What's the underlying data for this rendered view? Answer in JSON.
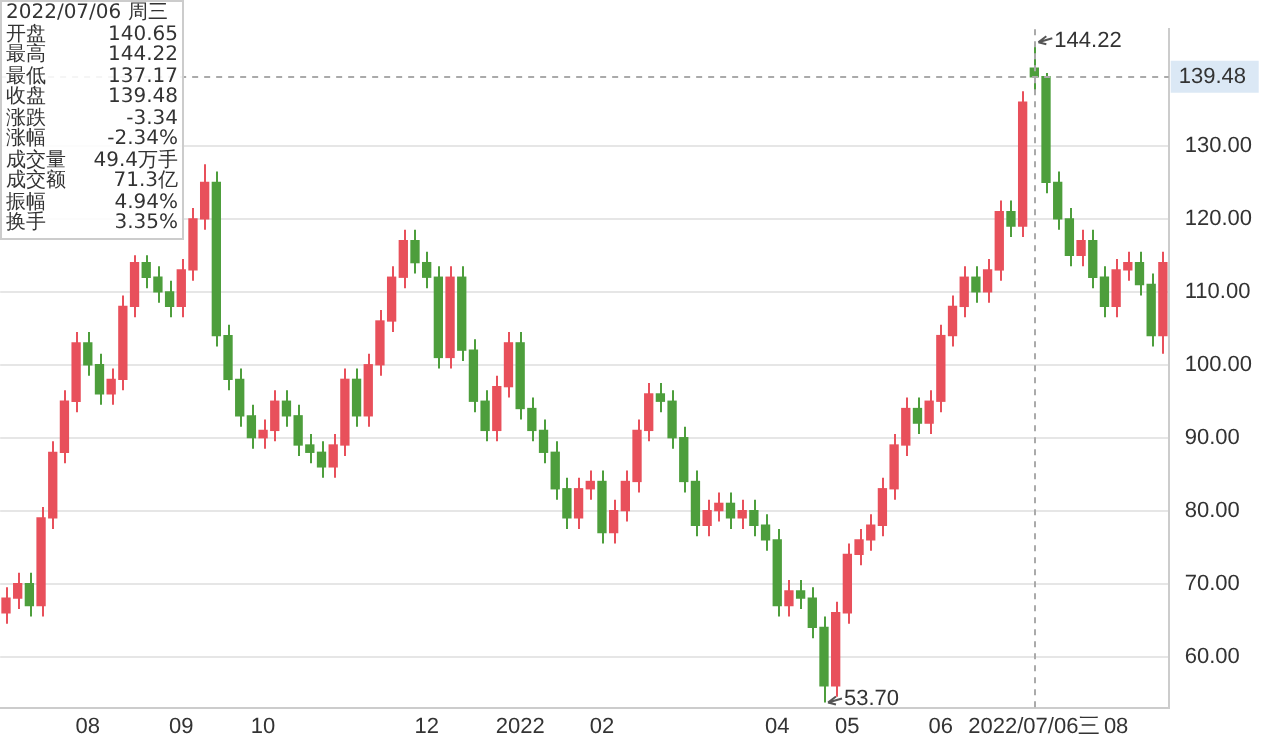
{
  "chart_data": {
    "type": "candlestick",
    "categories": [
      null,
      null,
      null,
      null,
      null,
      null,
      null,
      "08",
      null,
      null,
      null,
      null,
      null,
      null,
      null,
      "09",
      null,
      null,
      null,
      null,
      null,
      null,
      "10",
      null,
      null,
      null,
      null,
      null,
      null,
      null,
      null,
      null,
      null,
      null,
      null,
      null,
      "12",
      null,
      null,
      null,
      null,
      null,
      null,
      null,
      "2022",
      null,
      null,
      null,
      null,
      null,
      null,
      "02",
      null,
      null,
      null,
      null,
      null,
      null,
      null,
      null,
      null,
      null,
      null,
      null,
      null,
      null,
      "04",
      null,
      null,
      null,
      null,
      null,
      "05",
      null,
      null,
      null,
      null,
      null,
      null,
      null,
      "06",
      null,
      null,
      null,
      null,
      null,
      null,
      null,
      "2022/07/06三",
      null,
      null,
      null,
      null,
      null,
      null,
      "08",
      null,
      null,
      null,
      null
    ],
    "ohlc": [
      [
        66,
        69.5,
        64.5,
        68
      ],
      [
        68,
        71.5,
        66.5,
        70
      ],
      [
        70,
        71.5,
        65.5,
        67
      ],
      [
        67,
        80.5,
        65.5,
        79
      ],
      [
        79,
        89.5,
        77.5,
        88
      ],
      [
        88,
        96.5,
        86.5,
        95
      ],
      [
        95,
        104.5,
        93.5,
        103
      ],
      [
        103,
        104.5,
        98.5,
        100
      ],
      [
        100,
        101.5,
        94.5,
        96
      ],
      [
        96,
        99.5,
        94.5,
        98
      ],
      [
        98,
        109.5,
        96.5,
        108
      ],
      [
        108,
        115,
        106.5,
        114
      ],
      [
        114,
        115,
        110.5,
        112
      ],
      [
        112,
        113.5,
        108.5,
        110
      ],
      [
        110,
        111.5,
        106.5,
        108
      ],
      [
        108,
        114.5,
        106.5,
        113
      ],
      [
        113,
        121.5,
        111.5,
        120
      ],
      [
        120,
        127.5,
        118.5,
        125
      ],
      [
        125,
        126.5,
        102.5,
        104
      ],
      [
        104,
        105.5,
        96.5,
        98
      ],
      [
        98,
        99.5,
        91.5,
        93
      ],
      [
        93,
        94.5,
        88.5,
        90
      ],
      [
        90,
        92.5,
        88.5,
        91
      ],
      [
        91,
        96.5,
        89.5,
        95
      ],
      [
        95,
        96.5,
        91.5,
        93
      ],
      [
        93,
        94.5,
        87.5,
        89
      ],
      [
        89,
        90.5,
        86.5,
        88
      ],
      [
        88,
        89.5,
        84.5,
        86
      ],
      [
        86,
        90.5,
        84.5,
        89
      ],
      [
        89,
        99.5,
        87.5,
        98
      ],
      [
        98,
        99.5,
        91.5,
        93
      ],
      [
        93,
        101.5,
        91.5,
        100
      ],
      [
        100,
        107.5,
        98.5,
        106
      ],
      [
        106,
        113.5,
        104.5,
        112
      ],
      [
        112,
        118.5,
        110.5,
        117
      ],
      [
        117,
        118.5,
        112.5,
        114
      ],
      [
        114,
        115.5,
        110.5,
        112
      ],
      [
        112,
        113.5,
        99.5,
        101
      ],
      [
        101,
        113.5,
        99.5,
        112
      ],
      [
        112,
        113.5,
        100.5,
        102
      ],
      [
        102,
        103.5,
        93.5,
        95
      ],
      [
        95,
        96.5,
        89.5,
        91
      ],
      [
        91,
        98.5,
        89.5,
        97
      ],
      [
        97,
        104.5,
        95.5,
        103
      ],
      [
        103,
        104.5,
        92.5,
        94
      ],
      [
        94,
        95.5,
        89.5,
        91
      ],
      [
        91,
        92.5,
        86.5,
        88
      ],
      [
        88,
        89.5,
        81.5,
        83
      ],
      [
        83,
        84.5,
        77.5,
        79
      ],
      [
        79,
        84.5,
        77.5,
        83
      ],
      [
        83,
        85.5,
        81.5,
        84
      ],
      [
        84,
        85.5,
        75.5,
        77
      ],
      [
        77,
        81.5,
        75.5,
        80
      ],
      [
        80,
        85.5,
        78.5,
        84
      ],
      [
        84,
        92.5,
        82.5,
        91
      ],
      [
        91,
        97.5,
        89.5,
        96
      ],
      [
        96,
        97.5,
        93.5,
        95
      ],
      [
        95,
        96.5,
        88.5,
        90
      ],
      [
        90,
        91.5,
        82.5,
        84
      ],
      [
        84,
        85.5,
        76.5,
        78
      ],
      [
        78,
        81.5,
        76.5,
        80
      ],
      [
        80,
        82.5,
        78.5,
        81
      ],
      [
        81,
        82.5,
        77.5,
        79
      ],
      [
        79,
        81.5,
        77.5,
        80
      ],
      [
        80,
        81.5,
        76.5,
        78
      ],
      [
        78,
        79.5,
        74.5,
        76
      ],
      [
        76,
        77.5,
        65.5,
        67
      ],
      [
        67,
        70.5,
        65.5,
        69
      ],
      [
        69,
        70.5,
        66.5,
        68
      ],
      [
        68,
        69.5,
        62.5,
        64
      ],
      [
        64,
        65.5,
        53.7,
        56
      ],
      [
        56,
        67.5,
        54.5,
        66
      ],
      [
        66,
        75.5,
        64.5,
        74
      ],
      [
        74,
        77.5,
        72.5,
        76
      ],
      [
        76,
        79.5,
        74.5,
        78
      ],
      [
        78,
        84.5,
        76.5,
        83
      ],
      [
        83,
        90.5,
        81.5,
        89
      ],
      [
        89,
        95.5,
        87.5,
        94
      ],
      [
        94,
        95.5,
        90.5,
        92
      ],
      [
        92,
        96.5,
        90.5,
        95
      ],
      [
        95,
        105.5,
        93.5,
        104
      ],
      [
        104,
        109.5,
        102.5,
        108
      ],
      [
        108,
        113.5,
        106.5,
        112
      ],
      [
        112,
        113.5,
        108.5,
        110
      ],
      [
        110,
        114.5,
        108.5,
        113
      ],
      [
        113,
        122.5,
        111.5,
        121
      ],
      [
        121,
        122.5,
        117.5,
        119
      ],
      [
        119,
        137.5,
        117.5,
        136
      ],
      [
        140.65,
        144.22,
        137.17,
        139.48
      ],
      [
        139.48,
        140,
        123.5,
        125
      ],
      [
        125,
        126.5,
        118.5,
        120
      ],
      [
        120,
        121.5,
        113.5,
        115
      ],
      [
        115,
        118.5,
        113.5,
        117
      ],
      [
        117,
        118.5,
        110.5,
        112
      ],
      [
        112,
        113.5,
        106.5,
        108
      ],
      [
        108,
        114.5,
        106.5,
        113
      ],
      [
        113,
        115.5,
        111.5,
        114
      ],
      [
        114,
        115.5,
        109.5,
        111
      ],
      [
        111,
        112.5,
        102.5,
        104
      ],
      [
        104,
        115.5,
        101.5,
        114
      ]
    ],
    "colors": [
      "#e8505b",
      "#e8505b",
      "#4d9e3c",
      "#e8505b",
      "#e8505b",
      "#e8505b",
      "#e8505b",
      "#4d9e3c",
      "#4d9e3c",
      "#e8505b",
      "#e8505b",
      "#e8505b",
      "#4d9e3c",
      "#4d9e3c",
      "#4d9e3c",
      "#e8505b",
      "#e8505b",
      "#e8505b",
      "#4d9e3c",
      "#4d9e3c",
      "#4d9e3c",
      "#4d9e3c",
      "#e8505b",
      "#e8505b",
      "#4d9e3c",
      "#4d9e3c",
      "#4d9e3c",
      "#4d9e3c",
      "#e8505b",
      "#e8505b",
      "#4d9e3c",
      "#e8505b",
      "#e8505b",
      "#e8505b",
      "#e8505b",
      "#4d9e3c",
      "#4d9e3c",
      "#4d9e3c",
      "#e8505b",
      "#4d9e3c",
      "#4d9e3c",
      "#4d9e3c",
      "#e8505b",
      "#e8505b",
      "#4d9e3c",
      "#4d9e3c",
      "#4d9e3c",
      "#4d9e3c",
      "#4d9e3c",
      "#e8505b",
      "#e8505b",
      "#4d9e3c",
      "#e8505b",
      "#e8505b",
      "#e8505b",
      "#e8505b",
      "#4d9e3c",
      "#4d9e3c",
      "#4d9e3c",
      "#4d9e3c",
      "#e8505b",
      "#e8505b",
      "#4d9e3c",
      "#e8505b",
      "#4d9e3c",
      "#4d9e3c",
      "#4d9e3c",
      "#e8505b",
      "#4d9e3c",
      "#4d9e3c",
      "#4d9e3c",
      "#e8505b",
      "#e8505b",
      "#e8505b",
      "#e8505b",
      "#e8505b",
      "#e8505b",
      "#e8505b",
      "#4d9e3c",
      "#e8505b",
      "#e8505b",
      "#e8505b",
      "#e8505b",
      "#4d9e3c",
      "#e8505b",
      "#e8505b",
      "#4d9e3c",
      "#e8505b",
      "#4d9e3c",
      "#4d9e3c",
      "#4d9e3c",
      "#4d9e3c",
      "#e8505b",
      "#4d9e3c",
      "#4d9e3c",
      "#e8505b",
      "#e8505b",
      "#4d9e3c",
      "#4d9e3c",
      "#e8505b"
    ],
    "ylim": [
      53,
      146
    ],
    "yticks": [
      {
        "value": 60,
        "label": "60.00"
      },
      {
        "value": 70,
        "label": "70.00"
      },
      {
        "value": 80,
        "label": "80.00"
      },
      {
        "value": 90,
        "label": "90.00"
      },
      {
        "value": 100,
        "label": "100.00"
      },
      {
        "value": 110,
        "label": "110.00"
      },
      {
        "value": 120,
        "label": "120.00"
      },
      {
        "value": 130,
        "label": "130.00"
      }
    ],
    "grid": "y",
    "ref_lines": [
      {
        "axis": "x",
        "value": "2022/07/06三",
        "line_style": "dashed",
        "color": "#aaaaaa"
      },
      {
        "axis": "y",
        "value": 139.48,
        "label": "139.48",
        "line_style": "dashed",
        "color": "#aaaaaa"
      }
    ],
    "annotations": [
      "2022/07/06 周三",
      "开盘",
      "140.65",
      "最高",
      "144.22",
      "最低",
      "137.17",
      "收盘",
      "139.48",
      "涨跌",
      "-3.34",
      "涨幅",
      "-2.34%",
      "成交量",
      "49.4万手",
      "成交额",
      "71.3亿",
      "振幅",
      "4.94%",
      "换手",
      "3.35%",
      {
        "text": "144.22",
        "x": "2022/07/06三",
        "y": 144.22
      },
      "53.70"
    ]
  }
}
